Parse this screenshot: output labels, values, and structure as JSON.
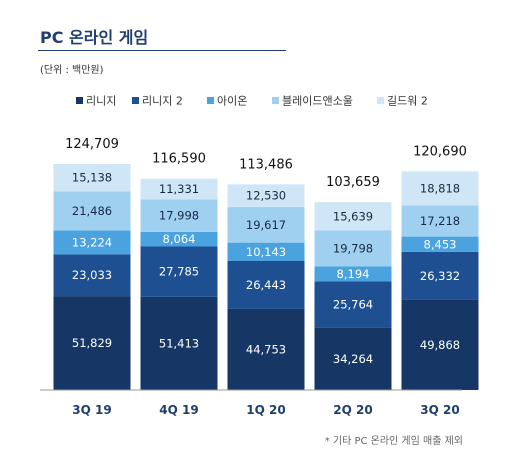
{
  "title": "PC 온라인 게임",
  "unit": "(단위 : 백만원)",
  "footnote": "* 기타 PC 온라인 게임 매출 제외",
  "chart_data": {
    "type": "bar",
    "stacked": true,
    "categories": [
      "3Q 19",
      "4Q 19",
      "1Q 20",
      "2Q 20",
      "3Q 20"
    ],
    "series": [
      {
        "name": "리니지",
        "color": "#163766",
        "values": [
          51829,
          51413,
          44753,
          34264,
          49868
        ]
      },
      {
        "name": "리니지 2",
        "color": "#1d4f91",
        "values": [
          23033,
          27785,
          26443,
          25764,
          26332
        ]
      },
      {
        "name": "아이온",
        "color": "#4aa3df",
        "values": [
          13224,
          8064,
          10143,
          8194,
          8453
        ]
      },
      {
        "name": "블레이드앤소울",
        "color": "#9fd0f0",
        "values": [
          21486,
          17998,
          19617,
          19798,
          17218
        ]
      },
      {
        "name": "길드워 2",
        "color": "#cfe6f7",
        "values": [
          15138,
          11331,
          12530,
          15639,
          18818
        ]
      }
    ],
    "totals": [
      124709,
      116590,
      113486,
      103659,
      120690
    ],
    "ylim": [
      0,
      130000
    ],
    "legend": "top",
    "grid": false
  }
}
